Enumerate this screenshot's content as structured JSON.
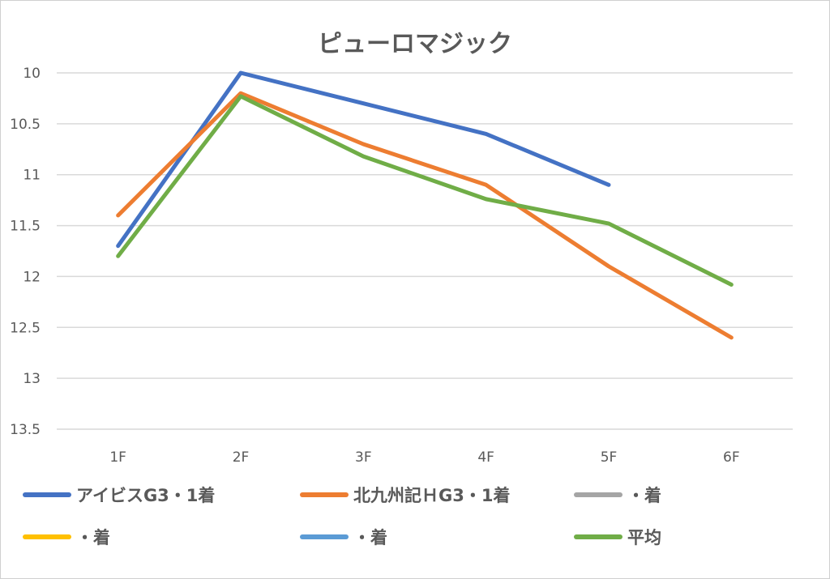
{
  "chart_data": {
    "type": "line",
    "title": "ピューロマジック",
    "categories": [
      "1F",
      "2F",
      "3F",
      "4F",
      "5F",
      "6F"
    ],
    "y_ticks": [
      "10",
      "10.5",
      "11",
      "11.5",
      "12",
      "12.5",
      "13",
      "13.5"
    ],
    "ylim": [
      10,
      13.5
    ],
    "y_inverted": true,
    "grid": true,
    "legend_position": "bottom",
    "series": [
      {
        "name": "アイビスG3・1着",
        "color": "#4472c4",
        "values": [
          11.7,
          10.0,
          10.3,
          10.6,
          11.1,
          null
        ]
      },
      {
        "name": "北九州記ＨG3・1着",
        "color": "#ed7d31",
        "values": [
          11.4,
          10.2,
          10.7,
          11.1,
          11.9,
          12.6
        ]
      },
      {
        "name": "・着",
        "color": "#a5a5a5",
        "values": [
          null,
          null,
          null,
          null,
          null,
          null
        ]
      },
      {
        "name": "・着",
        "color": "#ffc000",
        "values": [
          null,
          null,
          null,
          null,
          null,
          null
        ]
      },
      {
        "name": "・着",
        "color": "#5b9bd5",
        "values": [
          null,
          null,
          null,
          null,
          null,
          null
        ]
      },
      {
        "name": "平均",
        "color": "#70ad47",
        "values": [
          11.8,
          10.23,
          10.82,
          11.24,
          11.48,
          12.08
        ]
      }
    ]
  }
}
